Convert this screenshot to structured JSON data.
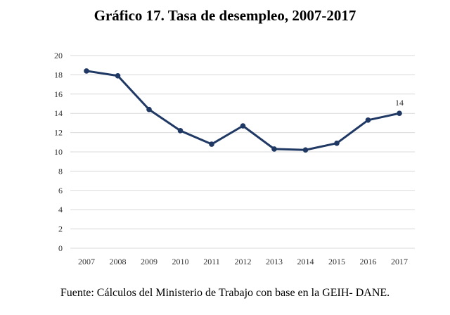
{
  "chart_data": {
    "type": "line",
    "title": "Gráfico 17. Tasa de desempleo, 2007-2017",
    "xlabel": "",
    "ylabel": "",
    "categories": [
      "2007",
      "2008",
      "2009",
      "2010",
      "2011",
      "2012",
      "2013",
      "2014",
      "2015",
      "2016",
      "2017"
    ],
    "series": [
      {
        "values": [
          18.4,
          17.9,
          14.4,
          12.2,
          10.8,
          12.7,
          10.3,
          10.2,
          10.9,
          13.3,
          14.0
        ]
      }
    ],
    "data_labels": {
      "2017": "14"
    },
    "ylim": [
      0,
      20
    ],
    "yticks": [
      0,
      2,
      4,
      6,
      8,
      10,
      12,
      14,
      16,
      18,
      20
    ],
    "grid": true,
    "legend": "none",
    "colors": {
      "line": "#1f3864",
      "grid": "#d9d9d9"
    }
  },
  "source": "Fuente: Cálculos del Ministerio de Trabajo con base en la GEIH- DANE."
}
